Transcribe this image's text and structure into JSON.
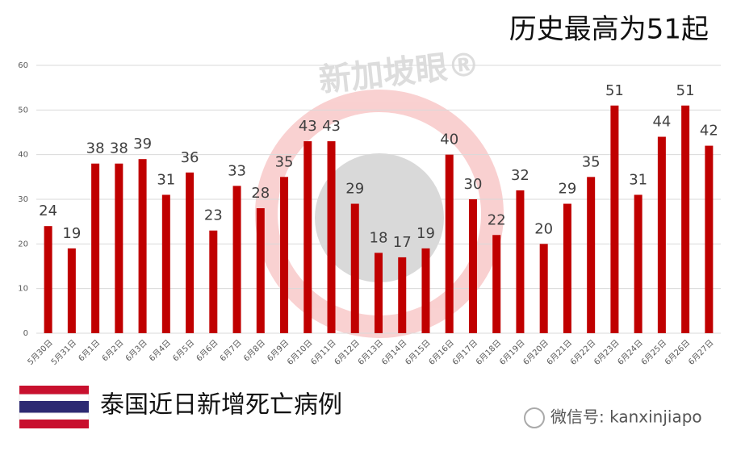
{
  "chart_data": {
    "type": "bar",
    "title": "历史最高为51起",
    "caption": "泰国近日新增死亡病例",
    "watermark": "新加坡眼®",
    "source": "微信号: kanxinjiapo",
    "categories": [
      "5月30日",
      "5月31日",
      "6月1日",
      "6月2日",
      "6月3日",
      "6月4日",
      "6月5日",
      "6月6日",
      "6月7日",
      "6月8日",
      "6月9日",
      "6月10日",
      "6月11日",
      "6月12日",
      "6月13日",
      "6月14日",
      "6月15日",
      "6月16日",
      "6月17日",
      "6月18日",
      "6月19日",
      "6月20日",
      "6月21日",
      "6月22日",
      "6月23日",
      "6月24日",
      "6月25日",
      "6月26日",
      "6月27日"
    ],
    "values": [
      24,
      19,
      38,
      38,
      39,
      31,
      36,
      23,
      33,
      28,
      35,
      43,
      43,
      29,
      18,
      17,
      19,
      40,
      30,
      22,
      32,
      20,
      29,
      35,
      51,
      31,
      44,
      51,
      42
    ],
    "color": "#c00000",
    "ylim": [
      0,
      60
    ],
    "yticks": [
      0,
      10,
      20,
      30,
      40,
      50,
      60
    ],
    "grid": true
  }
}
